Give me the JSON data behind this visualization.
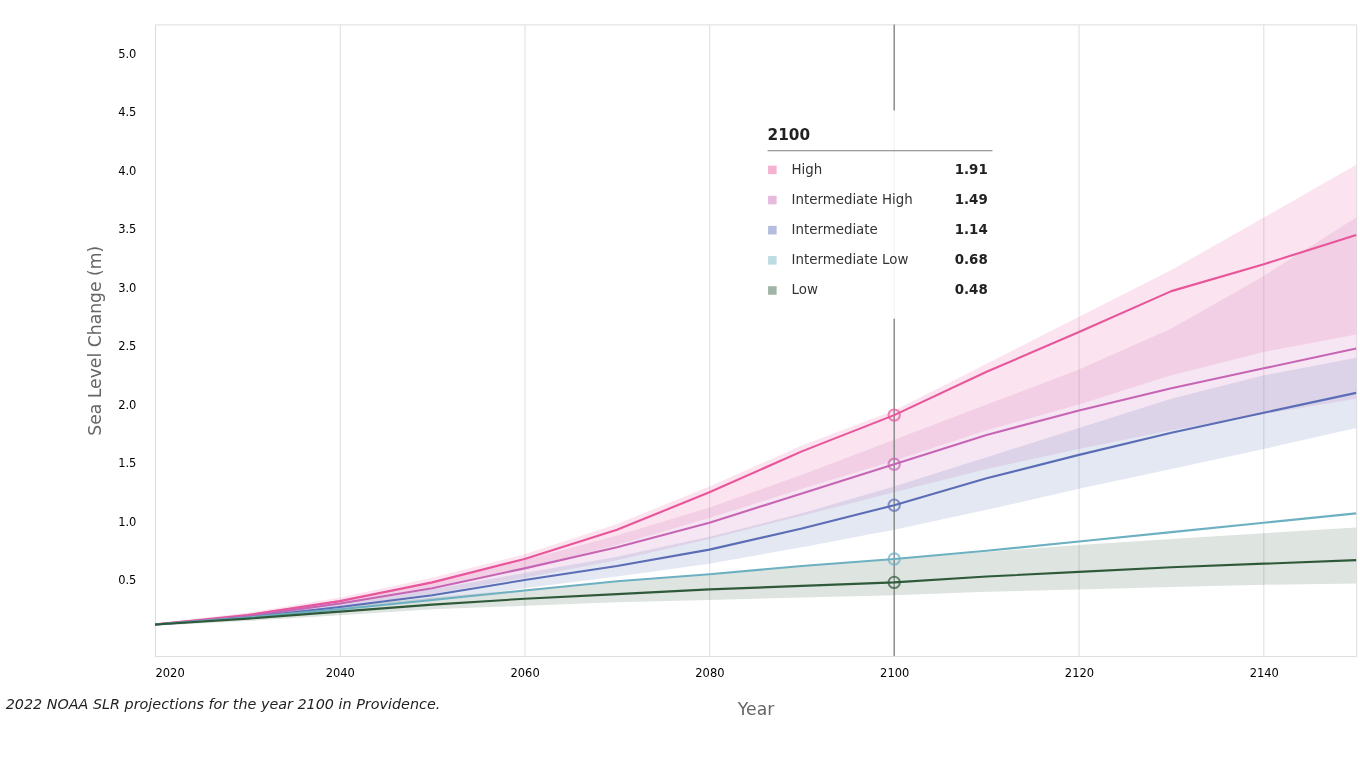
{
  "chart_data": {
    "type": "line",
    "xlabel": "Year",
    "ylabel": "Sea Level Change (m)",
    "legend_title": "2100",
    "legend": "top",
    "grid": "x",
    "line_style": "solid",
    "annotations": [
      "2022 NOAA SLR projections for the year 2100 in Providence.",
      "1.91",
      "1.49",
      "1.14",
      "0.68",
      "0.48"
    ],
    "x": [
      2020,
      2030,
      2040,
      2050,
      2060,
      2070,
      2080,
      2090,
      2100,
      2110,
      2120,
      2130,
      2140,
      2150
    ],
    "xlim": [
      2020,
      2150
    ],
    "xticks": [
      2020,
      2040,
      2060,
      2080,
      2100,
      2120,
      2140
    ],
    "ylim": [
      -0.15,
      5.25
    ],
    "yticks": [
      0.5,
      {
        "value": 1,
        "label": "1.0"
      },
      1.5,
      {
        "value": 2,
        "label": "2.0"
      },
      2.5,
      {
        "value": 3,
        "label": "3.0"
      },
      3.5,
      {
        "value": 4,
        "label": "4.0"
      },
      4.5,
      {
        "value": 5,
        "label": "5.0"
      }
    ],
    "ref_lines": [
      {
        "axis": "x",
        "value": 2100,
        "color": "#8a8a8a"
      }
    ],
    "series": [
      {
        "name": "High",
        "color": "#e8559a",
        "values": [
          0.12,
          0.2,
          0.32,
          0.48,
          0.68,
          0.93,
          1.25,
          1.6,
          1.91,
          2.28,
          2.62,
          2.97,
          3.2,
          3.45
        ],
        "lower": [
          0.11,
          0.18,
          0.29,
          0.43,
          0.6,
          0.8,
          1.03,
          1.28,
          1.52,
          1.78,
          2.0,
          2.25,
          2.45,
          2.6
        ],
        "upper": [
          0.13,
          0.22,
          0.35,
          0.52,
          0.72,
          0.98,
          1.3,
          1.65,
          1.95,
          2.35,
          2.75,
          3.15,
          3.6,
          4.05
        ]
      },
      {
        "name": "Intermediate High",
        "color": "#c765b5",
        "values": [
          0.12,
          0.19,
          0.3,
          0.43,
          0.6,
          0.78,
          0.99,
          1.24,
          1.49,
          1.74,
          1.95,
          2.14,
          2.31,
          2.48
        ],
        "lower": [
          0.11,
          0.17,
          0.27,
          0.38,
          0.52,
          0.67,
          0.85,
          1.05,
          1.25,
          1.45,
          1.62,
          1.78,
          1.92,
          2.05
        ],
        "upper": [
          0.13,
          0.21,
          0.33,
          0.48,
          0.67,
          0.88,
          1.12,
          1.4,
          1.7,
          2.0,
          2.3,
          2.65,
          3.1,
          3.6
        ]
      },
      {
        "name": "Intermediate",
        "color": "#5a6db5",
        "values": [
          0.12,
          0.18,
          0.27,
          0.37,
          0.5,
          0.62,
          0.76,
          0.94,
          1.14,
          1.37,
          1.57,
          1.76,
          1.93,
          2.1
        ],
        "lower": [
          0.11,
          0.16,
          0.24,
          0.32,
          0.43,
          0.53,
          0.64,
          0.78,
          0.93,
          1.1,
          1.28,
          1.45,
          1.62,
          1.8
        ],
        "upper": [
          0.13,
          0.2,
          0.3,
          0.42,
          0.56,
          0.7,
          0.87,
          1.07,
          1.3,
          1.55,
          1.8,
          2.05,
          2.25,
          2.4
        ]
      },
      {
        "name": "Intermediate Low",
        "color": "#6db0c2",
        "values": [
          0.12,
          0.18,
          0.25,
          0.33,
          0.41,
          0.49,
          0.55,
          0.62,
          0.68,
          0.75,
          0.83,
          0.91,
          0.99,
          1.07
        ]
      },
      {
        "name": "Low",
        "color": "#2f5a3a",
        "values": [
          0.12,
          0.17,
          0.23,
          0.29,
          0.34,
          0.38,
          0.42,
          0.45,
          0.48,
          0.53,
          0.57,
          0.61,
          0.64,
          0.67
        ],
        "lower": [
          0.11,
          0.15,
          0.2,
          0.25,
          0.28,
          0.31,
          0.33,
          0.35,
          0.37,
          0.4,
          0.42,
          0.44,
          0.46,
          0.47
        ],
        "upper": [
          0.13,
          0.2,
          0.27,
          0.35,
          0.42,
          0.49,
          0.55,
          0.62,
          0.68,
          0.74,
          0.8,
          0.85,
          0.9,
          0.95
        ]
      }
    ]
  }
}
